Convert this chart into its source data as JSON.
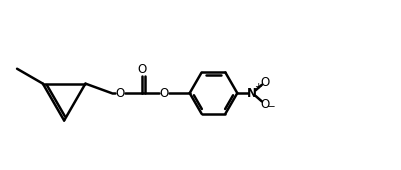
{
  "bg_color": "#ffffff",
  "line_color": "#000000",
  "line_width": 1.8,
  "font_size": 8.5,
  "figsize": [
    4.02,
    1.7
  ],
  "dpi": 100,
  "xlim": [
    0,
    10
  ],
  "ylim": [
    0,
    4.25
  ]
}
